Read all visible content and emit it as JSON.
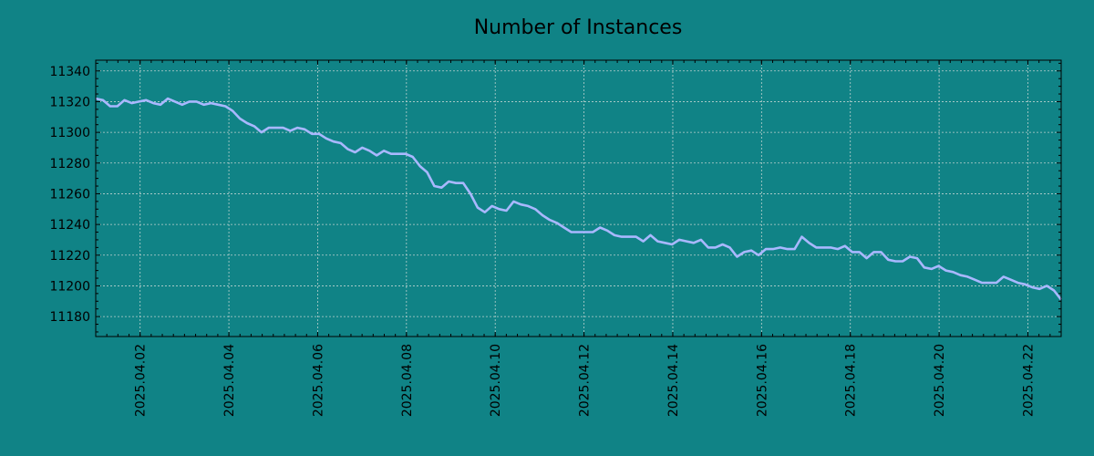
{
  "colors": {
    "background": "#108386",
    "line": "#a9b8ff",
    "grid": "#bcd2cf",
    "axis": "#000000"
  },
  "chart_data": {
    "type": "line",
    "title": "Number of Instances",
    "xlabel": "",
    "ylabel": "",
    "x_range": [
      "2025-04-01",
      "2025-04-22T18:00"
    ],
    "ylim": [
      11167,
      11347
    ],
    "y_ticks": [
      11180,
      11200,
      11220,
      11240,
      11260,
      11280,
      11300,
      11320,
      11340
    ],
    "x_ticks": [
      "2025.04.02",
      "2025.04.04",
      "2025.04.06",
      "2025.04.08",
      "2025.04.10",
      "2025.04.12",
      "2025.04.14",
      "2025.04.16",
      "2025.04.18",
      "2025.04.20",
      "2025.04.22"
    ],
    "grid": true,
    "series": [
      {
        "points": [
          [
            "2025-04-01T00:00",
            11322
          ],
          [
            "2025-04-01T03:00",
            11321
          ],
          [
            "2025-04-01T06:00",
            11317
          ],
          [
            "2025-04-01T09:00",
            11317
          ],
          [
            "2025-04-01T12:00",
            11321
          ],
          [
            "2025-04-01T15:00",
            11319
          ],
          [
            "2025-04-01T18:00",
            11320
          ],
          [
            "2025-04-01T21:00",
            11321
          ],
          [
            "2025-04-02T00:00",
            11319
          ],
          [
            "2025-04-02T03:00",
            11318
          ],
          [
            "2025-04-02T06:00",
            11322
          ],
          [
            "2025-04-02T09:00",
            11320
          ],
          [
            "2025-04-02T12:00",
            11318
          ],
          [
            "2025-04-02T15:00",
            11320
          ],
          [
            "2025-04-02T18:00",
            11320
          ],
          [
            "2025-04-02T21:00",
            11318
          ],
          [
            "2025-04-03T00:00",
            11319
          ],
          [
            "2025-04-03T03:00",
            11318
          ],
          [
            "2025-04-03T06:00",
            11317
          ],
          [
            "2025-04-03T09:00",
            11314
          ],
          [
            "2025-04-03T12:00",
            11309
          ],
          [
            "2025-04-03T15:00",
            11306
          ],
          [
            "2025-04-03T18:00",
            11304
          ],
          [
            "2025-04-03T21:00",
            11300
          ],
          [
            "2025-04-04T00:00",
            11303
          ],
          [
            "2025-04-04T03:00",
            11303
          ],
          [
            "2025-04-04T06:00",
            11303
          ],
          [
            "2025-04-04T09:00",
            11301
          ],
          [
            "2025-04-04T12:00",
            11303
          ],
          [
            "2025-04-04T15:00",
            11302
          ],
          [
            "2025-04-04T18:00",
            11299
          ],
          [
            "2025-04-04T21:00",
            11299
          ],
          [
            "2025-04-05T00:00",
            11296
          ],
          [
            "2025-04-05T03:00",
            11294
          ],
          [
            "2025-04-05T06:00",
            11293
          ],
          [
            "2025-04-05T09:00",
            11289
          ],
          [
            "2025-04-05T12:00",
            11287
          ],
          [
            "2025-04-05T15:00",
            11290
          ],
          [
            "2025-04-05T18:00",
            11288
          ],
          [
            "2025-04-05T21:00",
            11285
          ],
          [
            "2025-04-06T00:00",
            11288
          ],
          [
            "2025-04-06T03:00",
            11286
          ],
          [
            "2025-04-06T06:00",
            11286
          ],
          [
            "2025-04-06T09:00",
            11286
          ],
          [
            "2025-04-06T12:00",
            11284
          ],
          [
            "2025-04-06T15:00",
            11278
          ],
          [
            "2025-04-06T18:00",
            11274
          ],
          [
            "2025-04-06T21:00",
            11265
          ],
          [
            "2025-04-07T00:00",
            11264
          ],
          [
            "2025-04-07T03:00",
            11268
          ],
          [
            "2025-04-07T06:00",
            11267
          ],
          [
            "2025-04-07T09:00",
            11267
          ],
          [
            "2025-04-07T12:00",
            11260
          ],
          [
            "2025-04-07T15:00",
            11251
          ],
          [
            "2025-04-07T18:00",
            11248
          ],
          [
            "2025-04-07T21:00",
            11252
          ],
          [
            "2025-04-08T00:00",
            11250
          ],
          [
            "2025-04-08T03:00",
            11249
          ],
          [
            "2025-04-08T06:00",
            11255
          ],
          [
            "2025-04-08T09:00",
            11253
          ],
          [
            "2025-04-08T12:00",
            11252
          ],
          [
            "2025-04-08T15:00",
            11250
          ],
          [
            "2025-04-08T18:00",
            11246
          ],
          [
            "2025-04-08T21:00",
            11243
          ],
          [
            "2025-04-09T00:00",
            11241
          ],
          [
            "2025-04-09T03:00",
            11238
          ],
          [
            "2025-04-09T06:00",
            11235
          ],
          [
            "2025-04-09T09:00",
            11235
          ],
          [
            "2025-04-09T12:00",
            11235
          ],
          [
            "2025-04-09T15:00",
            11235
          ],
          [
            "2025-04-09T18:00",
            11238
          ],
          [
            "2025-04-09T21:00",
            11236
          ],
          [
            "2025-04-10T00:00",
            11233
          ],
          [
            "2025-04-10T03:00",
            11232
          ],
          [
            "2025-04-10T06:00",
            11232
          ],
          [
            "2025-04-10T09:00",
            11232
          ],
          [
            "2025-04-10T12:00",
            11229
          ],
          [
            "2025-04-10T15:00",
            11233
          ],
          [
            "2025-04-10T18:00",
            11229
          ],
          [
            "2025-04-10T21:00",
            11228
          ],
          [
            "2025-04-11T00:00",
            11227
          ],
          [
            "2025-04-11T03:00",
            11230
          ],
          [
            "2025-04-11T06:00",
            11229
          ],
          [
            "2025-04-11T09:00",
            11228
          ],
          [
            "2025-04-11T12:00",
            11230
          ],
          [
            "2025-04-11T15:00",
            11225
          ],
          [
            "2025-04-11T18:00",
            11225
          ],
          [
            "2025-04-11T21:00",
            11227
          ],
          [
            "2025-04-12T00:00",
            11225
          ],
          [
            "2025-04-12T03:00",
            11219
          ],
          [
            "2025-04-12T06:00",
            11222
          ],
          [
            "2025-04-12T09:00",
            11223
          ],
          [
            "2025-04-12T12:00",
            11220
          ],
          [
            "2025-04-12T15:00",
            11224
          ],
          [
            "2025-04-12T18:00",
            11224
          ],
          [
            "2025-04-12T21:00",
            11225
          ],
          [
            "2025-04-13T00:00",
            11224
          ],
          [
            "2025-04-13T03:00",
            11224
          ],
          [
            "2025-04-13T06:00",
            11232
          ],
          [
            "2025-04-13T09:00",
            11228
          ],
          [
            "2025-04-13T12:00",
            11225
          ],
          [
            "2025-04-13T15:00",
            11225
          ],
          [
            "2025-04-13T18:00",
            11225
          ],
          [
            "2025-04-13T21:00",
            11224
          ],
          [
            "2025-04-14T00:00",
            11226
          ],
          [
            "2025-04-14T03:00",
            11222
          ],
          [
            "2025-04-14T06:00",
            11222
          ],
          [
            "2025-04-14T09:00",
            11218
          ],
          [
            "2025-04-14T12:00",
            11222
          ],
          [
            "2025-04-14T15:00",
            11222
          ],
          [
            "2025-04-14T18:00",
            11217
          ],
          [
            "2025-04-14T21:00",
            11216
          ],
          [
            "2025-04-15T00:00",
            11216
          ],
          [
            "2025-04-15T03:00",
            11219
          ],
          [
            "2025-04-15T06:00",
            11218
          ],
          [
            "2025-04-15T09:00",
            11212
          ],
          [
            "2025-04-15T12:00",
            11211
          ],
          [
            "2025-04-15T15:00",
            11213
          ],
          [
            "2025-04-15T18:00",
            11210
          ],
          [
            "2025-04-15T21:00",
            11209
          ],
          [
            "2025-04-16T00:00",
            11207
          ],
          [
            "2025-04-16T03:00",
            11206
          ],
          [
            "2025-04-16T06:00",
            11204
          ],
          [
            "2025-04-16T09:00",
            11202
          ],
          [
            "2025-04-16T12:00",
            11202
          ],
          [
            "2025-04-16T15:00",
            11202
          ],
          [
            "2025-04-16T18:00",
            11206
          ],
          [
            "2025-04-16T21:00",
            11204
          ],
          [
            "2025-04-17T00:00",
            11202
          ],
          [
            "2025-04-17T03:00",
            11201
          ],
          [
            "2025-04-17T06:00",
            11199
          ],
          [
            "2025-04-17T09:00",
            11198
          ],
          [
            "2025-04-17T12:00",
            11200
          ],
          [
            "2025-04-17T15:00",
            11197
          ],
          [
            "2025-04-17T18:00",
            11191
          ]
        ],
        "comment_x_note": "x values given in the series span 2025-04-01 .. 2025-04-17T18 but are remapped to the axis span below"
      }
    ]
  }
}
